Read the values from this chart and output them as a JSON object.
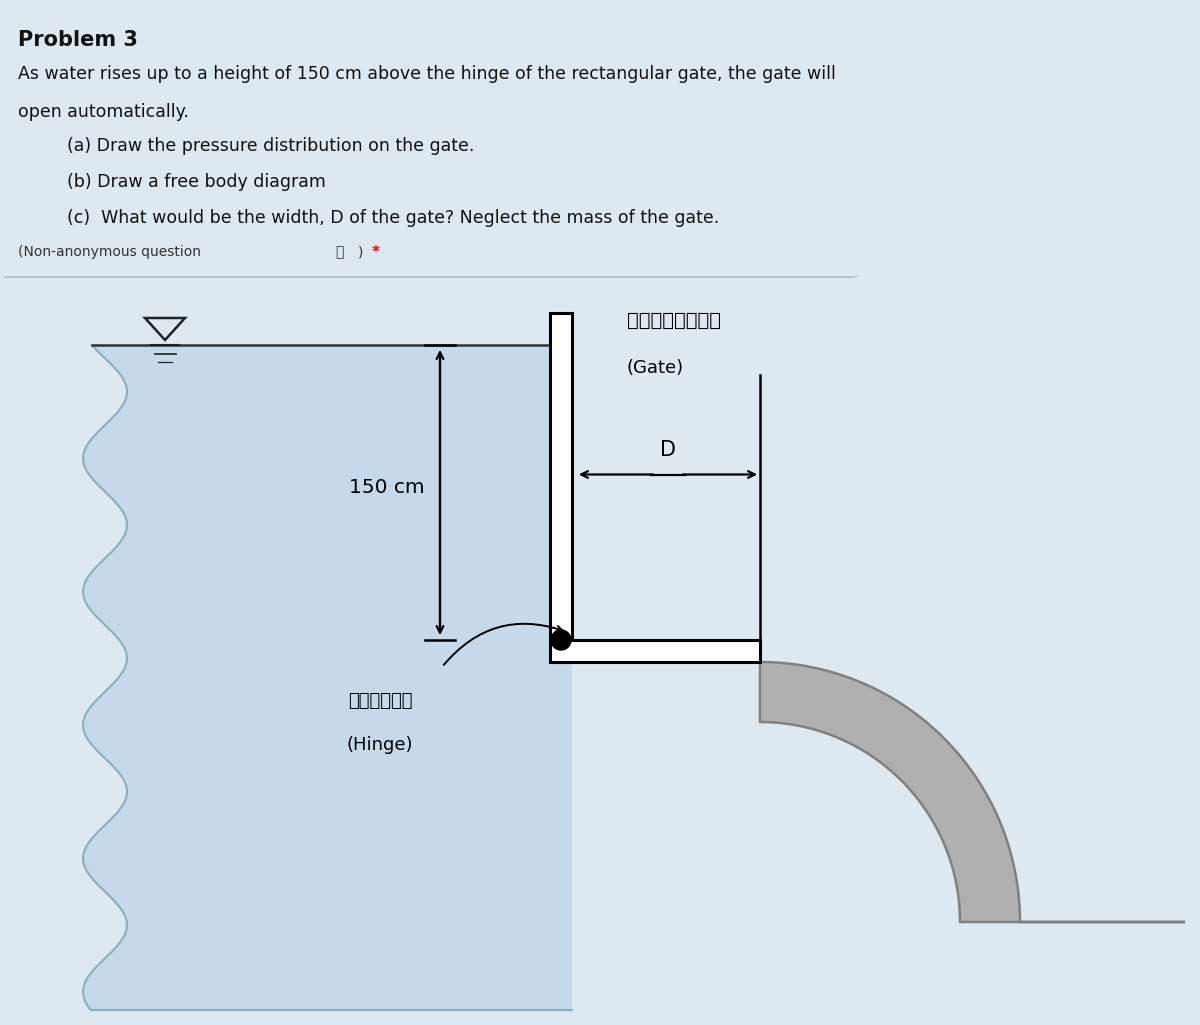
{
  "bg_color": "#dde8f0",
  "water_color": "#c5d9ea",
  "gate_color": "#ffffff",
  "gray_structure": "#b0b0b0",
  "gray_dark": "#808080",
  "title_text": "Problem 3",
  "problem_text_1": "As water rises up to a height of 150 cm above the hinge of the rectangular gate, the gate will",
  "problem_text_2": "open automatically.",
  "part_a": "    (a) Draw the pressure distribution on the gate.",
  "part_b": "    (b) Draw a free body diagram",
  "part_c": "    (c)  What would be the width, D of the gate? Neglect the mass of the gate.",
  "non_anon_main": "(Non-anonymous question",
  "non_anon_circle_i": "ⓘ",
  "non_anon_end": ") ",
  "non_anon_star": "*",
  "label_gate_th": "ประตูน้ำ",
  "label_gate_en": "(Gate)",
  "label_150": "150 cm",
  "label_D": "D",
  "label_hinge_th": "บานพับ",
  "label_hinge_en": "(Hinge)"
}
